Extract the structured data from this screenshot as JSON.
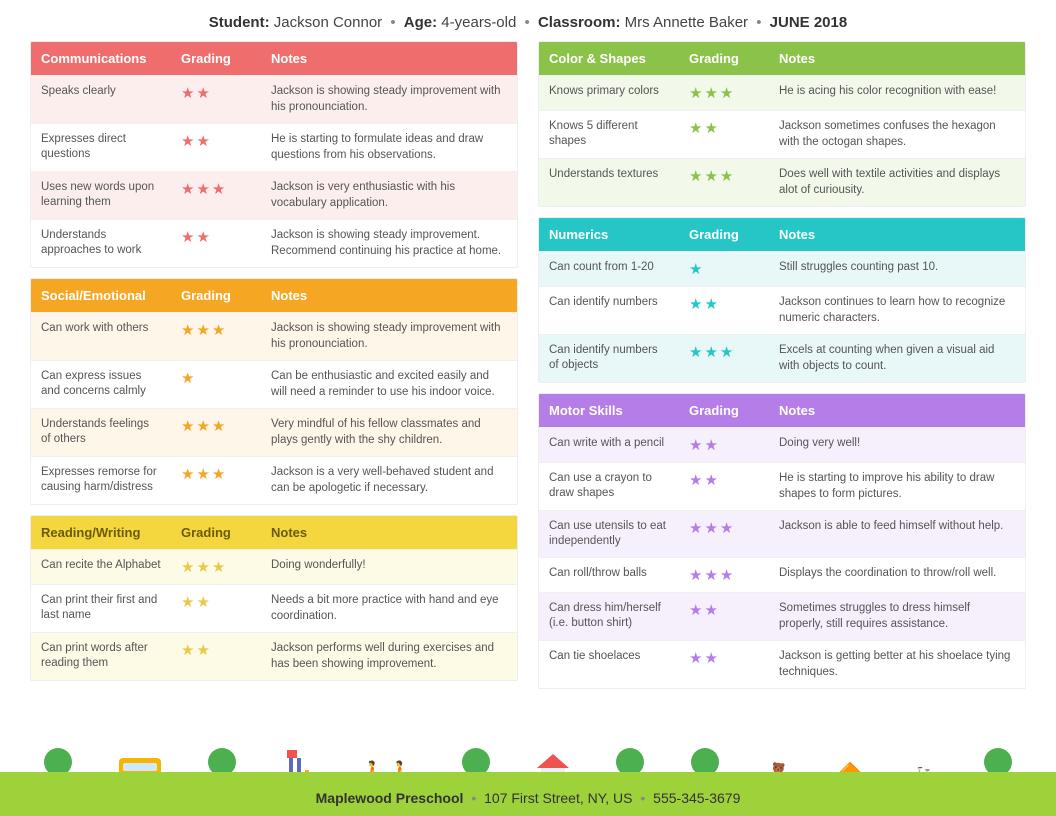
{
  "header": {
    "student_label": "Student:",
    "student": "Jackson Connor",
    "age_label": "Age:",
    "age": "4-years-old",
    "class_label": "Classroom:",
    "classroom": "Mrs Annette Baker",
    "date": "JUNE 2018"
  },
  "col_heads": {
    "grading": "Grading",
    "notes": "Notes"
  },
  "sections": {
    "communications": {
      "title": "Communications",
      "rows": [
        {
          "skill": "Speaks clearly",
          "stars": 2,
          "note": "Jackson is showing steady improvement with his pronounciation."
        },
        {
          "skill": "Expresses direct questions",
          "stars": 2,
          "note": "He is starting to formulate ideas and draw questions from his observations."
        },
        {
          "skill": "Uses new words upon learning them",
          "stars": 3,
          "note": "Jackson is very enthusiastic with his vocabulary application."
        },
        {
          "skill": "Understands approaches to work",
          "stars": 2,
          "note": "Jackson is showing steady improvement. Recommend continuing his practice at home."
        }
      ]
    },
    "social": {
      "title": "Social/Emotional",
      "rows": [
        {
          "skill": "Can work with others",
          "stars": 3,
          "note": "Jackson is showing steady improvement with his pronounciation."
        },
        {
          "skill": "Can express issues and concerns calmly",
          "stars": 1,
          "note": "Can be enthusiastic and excited easily and  will need a reminder to use his indoor voice."
        },
        {
          "skill": "Understands feelings of others",
          "stars": 3,
          "note": "Very mindful of his fellow classmates and plays gently with the shy children."
        },
        {
          "skill": "Expresses remorse for causing harm/distress",
          "stars": 3,
          "note": "Jackson is a very well-behaved student and can be apologetic if necessary."
        }
      ]
    },
    "reading": {
      "title": "Reading/Writing",
      "rows": [
        {
          "skill": "Can recite the Alphabet",
          "stars": 3,
          "note": "Doing wonderfully!"
        },
        {
          "skill": "Can print their first and last name",
          "stars": 2,
          "note": "Needs a bit more practice with hand and eye coordination."
        },
        {
          "skill": "Can print words after reading them",
          "stars": 2,
          "note": "Jackson performs well during exercises and has been showing improvement."
        }
      ]
    },
    "color": {
      "title": "Color & Shapes",
      "rows": [
        {
          "skill": "Knows primary colors",
          "stars": 3,
          "note": "He is acing his color recognition with ease!"
        },
        {
          "skill": "Knows 5 different shapes",
          "stars": 2,
          "note": "Jackson sometimes confuses the hexagon with the octogan shapes."
        },
        {
          "skill": "Understands textures",
          "stars": 3,
          "note": "Does well with textile activities and displays alot of curiousity."
        }
      ]
    },
    "numerics": {
      "title": "Numerics",
      "rows": [
        {
          "skill": "Can count from 1-20",
          "stars": 1,
          "note": "Still struggles counting past 10."
        },
        {
          "skill": "Can identify numbers",
          "stars": 2,
          "note": "Jackson continues to learn how to recognize numeric characters."
        },
        {
          "skill": "Can identify numbers of objects",
          "stars": 3,
          "note": "Excels at counting when given a visual aid with objects to count."
        }
      ]
    },
    "motor": {
      "title": "Motor Skills",
      "rows": [
        {
          "skill": "Can write with a pencil",
          "stars": 2,
          "note": "Doing very well!"
        },
        {
          "skill": "Can use a crayon to draw shapes",
          "stars": 2,
          "note": "He is starting to improve his ability to draw shapes to form pictures."
        },
        {
          "skill": "Can use utensils to eat independently",
          "stars": 3,
          "note": "Jackson is able to feed himself without help."
        },
        {
          "skill": "Can roll/throw balls",
          "stars": 3,
          "note": "Displays the coordination to throw/roll well."
        },
        {
          "skill": "Can dress him/herself (i.e. button shirt)",
          "stars": 2,
          "note": "Sometimes struggles to dress himself properly, still requires assistance."
        },
        {
          "skill": "Can tie shoelaces",
          "stars": 2,
          "note": "Jackson is getting better at his shoelace tying techniques."
        }
      ]
    }
  },
  "footer": {
    "school": "Maplewood Preschool",
    "address": "107 First Street, NY, US",
    "phone": "555-345-3679"
  },
  "theme": {
    "red": "#ef6d6d",
    "orange": "#f5a623",
    "yellow": "#f4d63e",
    "green": "#8bc34a",
    "teal": "#26c6c6",
    "purple": "#b57de8",
    "grass": "#9ed23b"
  }
}
